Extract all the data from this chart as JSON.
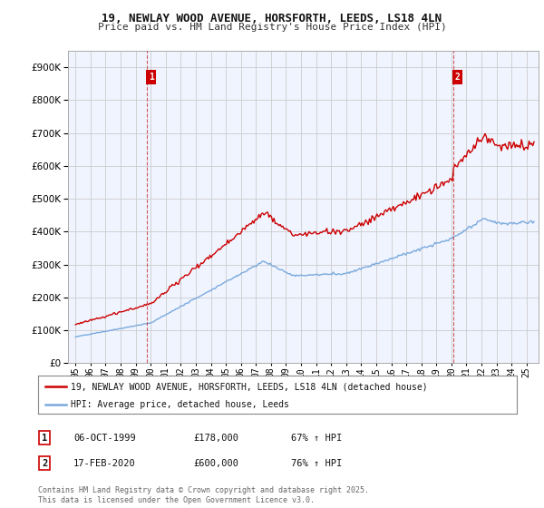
{
  "title_line1": "19, NEWLAY WOOD AVENUE, HORSFORTH, LEEDS, LS18 4LN",
  "title_line2": "Price paid vs. HM Land Registry's House Price Index (HPI)",
  "background_color": "#ffffff",
  "plot_background": "#f0f4ff",
  "grid_color": "#cccccc",
  "red_line_color": "#cc0000",
  "blue_line_color": "#7aaadd",
  "ylim_max": 950000,
  "ylim_min": 0,
  "xlim_min": 1994.5,
  "xlim_max": 2025.8,
  "legend_red_label": "19, NEWLAY WOOD AVENUE, HORSFORTH, LEEDS, LS18 4LN (detached house)",
  "legend_blue_label": "HPI: Average price, detached house, Leeds",
  "footnote": "Contains HM Land Registry data © Crown copyright and database right 2025.\nThis data is licensed under the Open Government Licence v3.0.",
  "sale1_label": "1",
  "sale1_date": "06-OCT-1999",
  "sale1_price": "£178,000",
  "sale1_hpi": "67% ↑ HPI",
  "sale2_label": "2",
  "sale2_date": "17-FEB-2020",
  "sale2_price": "£600,000",
  "sale2_hpi": "76% ↑ HPI",
  "vline1_x": 1999.76,
  "vline2_x": 2020.12
}
